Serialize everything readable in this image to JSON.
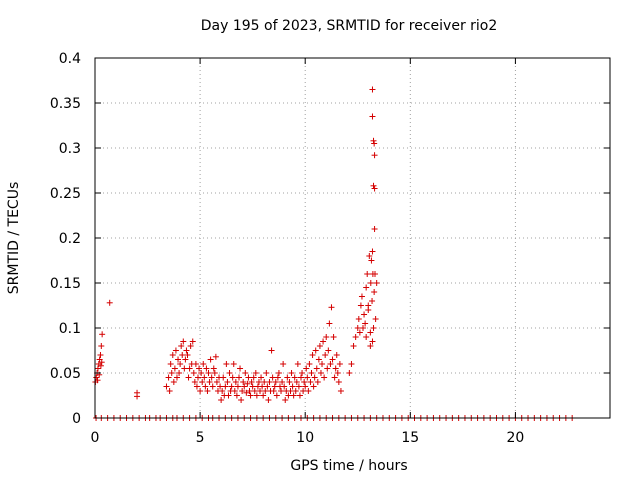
{
  "chart_data": {
    "type": "scatter",
    "title": "Day 195 of 2023, SRMTID for receiver rio2",
    "xlabel": "GPS time / hours",
    "ylabel": "SRMTID / TECUs",
    "xlim": [
      0,
      24.5
    ],
    "ylim": [
      0,
      0.4
    ],
    "grid": true,
    "marker": "+",
    "colors": {
      "series": "#d40000",
      "grid": "#a0a0a0",
      "axis": "#000000"
    },
    "x_ticks": [
      0,
      5,
      10,
      15,
      20
    ],
    "x_tick_labels": [
      "0",
      "5",
      "10",
      "15",
      "20"
    ],
    "y_ticks": [
      0,
      0.05,
      0.1,
      0.15,
      0.2,
      0.25,
      0.3,
      0.35,
      0.4
    ],
    "y_tick_labels": [
      "0",
      "0.05",
      "0.1",
      "0.15",
      "0.2",
      "0.25",
      "0.3",
      "0.35",
      "0.4"
    ],
    "series": [
      {
        "name": "SRMTID",
        "points": [
          [
            0.02,
            0.04
          ],
          [
            0.06,
            0.045
          ],
          [
            0.1,
            0.05
          ],
          [
            0.14,
            0.055
          ],
          [
            0.18,
            0.06
          ],
          [
            0.22,
            0.065
          ],
          [
            0.26,
            0.07
          ],
          [
            0.3,
            0.08
          ],
          [
            0.34,
            0.093
          ],
          [
            0.12,
            0.042
          ],
          [
            0.2,
            0.048
          ],
          [
            0.28,
            0.058
          ],
          [
            0.32,
            0.062
          ],
          [
            0.7,
            0.128
          ],
          [
            2.0,
            0.028
          ],
          [
            2.0,
            0.024
          ],
          [
            3.4,
            0.035
          ],
          [
            3.5,
            0.045
          ],
          [
            3.55,
            0.03
          ],
          [
            3.6,
            0.06
          ],
          [
            3.65,
            0.05
          ],
          [
            3.7,
            0.07
          ],
          [
            3.75,
            0.04
          ],
          [
            3.8,
            0.055
          ],
          [
            3.85,
            0.075
          ],
          [
            3.9,
            0.045
          ],
          [
            3.95,
            0.065
          ],
          [
            4.0,
            0.05
          ],
          [
            4.05,
            0.06
          ],
          [
            4.1,
            0.08
          ],
          [
            4.15,
            0.07
          ],
          [
            4.2,
            0.085
          ],
          [
            4.25,
            0.055
          ],
          [
            4.3,
            0.065
          ],
          [
            4.35,
            0.075
          ],
          [
            4.4,
            0.07
          ],
          [
            4.45,
            0.045
          ],
          [
            4.5,
            0.055
          ],
          [
            4.55,
            0.08
          ],
          [
            4.6,
            0.06
          ],
          [
            4.65,
            0.085
          ],
          [
            4.7,
            0.05
          ],
          [
            4.75,
            0.04
          ],
          [
            4.8,
            0.06
          ],
          [
            4.85,
            0.035
          ],
          [
            4.9,
            0.045
          ],
          [
            4.95,
            0.055
          ],
          [
            5.0,
            0.03
          ],
          [
            5.05,
            0.05
          ],
          [
            5.1,
            0.04
          ],
          [
            5.15,
            0.06
          ],
          [
            5.2,
            0.045
          ],
          [
            5.25,
            0.035
          ],
          [
            5.3,
            0.055
          ],
          [
            5.35,
            0.03
          ],
          [
            5.4,
            0.05
          ],
          [
            5.45,
            0.04
          ],
          [
            5.5,
            0.065
          ],
          [
            5.55,
            0.045
          ],
          [
            5.6,
            0.035
          ],
          [
            5.65,
            0.055
          ],
          [
            5.7,
            0.05
          ],
          [
            5.75,
            0.068
          ],
          [
            5.8,
            0.04
          ],
          [
            5.85,
            0.03
          ],
          [
            5.9,
            0.045
          ],
          [
            5.95,
            0.035
          ],
          [
            6.0,
            0.02
          ],
          [
            6.05,
            0.03
          ],
          [
            6.1,
            0.045
          ],
          [
            6.15,
            0.025
          ],
          [
            6.2,
            0.035
          ],
          [
            6.25,
            0.06
          ],
          [
            6.3,
            0.04
          ],
          [
            6.35,
            0.025
          ],
          [
            6.4,
            0.05
          ],
          [
            6.45,
            0.03
          ],
          [
            6.5,
            0.035
          ],
          [
            6.55,
            0.045
          ],
          [
            6.6,
            0.06
          ],
          [
            6.65,
            0.03
          ],
          [
            6.7,
            0.04
          ],
          [
            6.75,
            0.025
          ],
          [
            6.8,
            0.035
          ],
          [
            6.85,
            0.045
          ],
          [
            6.9,
            0.055
          ],
          [
            6.95,
            0.02
          ],
          [
            7.0,
            0.03
          ],
          [
            7.05,
            0.04
          ],
          [
            7.1,
            0.035
          ],
          [
            7.15,
            0.05
          ],
          [
            7.2,
            0.028
          ],
          [
            7.25,
            0.038
          ],
          [
            7.3,
            0.045
          ],
          [
            7.35,
            0.03
          ],
          [
            7.4,
            0.025
          ],
          [
            7.45,
            0.04
          ],
          [
            7.5,
            0.035
          ],
          [
            7.55,
            0.045
          ],
          [
            7.6,
            0.03
          ],
          [
            7.65,
            0.05
          ],
          [
            7.7,
            0.025
          ],
          [
            7.75,
            0.035
          ],
          [
            7.8,
            0.04
          ],
          [
            7.85,
            0.03
          ],
          [
            7.9,
            0.045
          ],
          [
            7.95,
            0.035
          ],
          [
            8.0,
            0.025
          ],
          [
            8.05,
            0.04
          ],
          [
            8.1,
            0.03
          ],
          [
            8.15,
            0.05
          ],
          [
            8.2,
            0.035
          ],
          [
            8.25,
            0.02
          ],
          [
            8.3,
            0.04
          ],
          [
            8.35,
            0.03
          ],
          [
            8.4,
            0.075
          ],
          [
            8.45,
            0.045
          ],
          [
            8.5,
            0.03
          ],
          [
            8.55,
            0.035
          ],
          [
            8.6,
            0.04
          ],
          [
            8.65,
            0.025
          ],
          [
            8.7,
            0.045
          ],
          [
            8.75,
            0.05
          ],
          [
            8.8,
            0.035
          ],
          [
            8.85,
            0.03
          ],
          [
            8.9,
            0.04
          ],
          [
            8.95,
            0.06
          ],
          [
            9.0,
            0.035
          ],
          [
            9.05,
            0.02
          ],
          [
            9.1,
            0.03
          ],
          [
            9.15,
            0.045
          ],
          [
            9.2,
            0.025
          ],
          [
            9.25,
            0.04
          ],
          [
            9.3,
            0.03
          ],
          [
            9.35,
            0.05
          ],
          [
            9.4,
            0.035
          ],
          [
            9.45,
            0.025
          ],
          [
            9.5,
            0.045
          ],
          [
            9.55,
            0.03
          ],
          [
            9.6,
            0.04
          ],
          [
            9.65,
            0.06
          ],
          [
            9.7,
            0.035
          ],
          [
            9.75,
            0.025
          ],
          [
            9.8,
            0.045
          ],
          [
            9.85,
            0.05
          ],
          [
            9.9,
            0.03
          ],
          [
            9.95,
            0.04
          ],
          [
            10.0,
            0.035
          ],
          [
            10.05,
            0.055
          ],
          [
            10.1,
            0.045
          ],
          [
            10.15,
            0.03
          ],
          [
            10.2,
            0.06
          ],
          [
            10.25,
            0.04
          ],
          [
            10.3,
            0.05
          ],
          [
            10.35,
            0.07
          ],
          [
            10.4,
            0.035
          ],
          [
            10.45,
            0.045
          ],
          [
            10.5,
            0.075
          ],
          [
            10.55,
            0.055
          ],
          [
            10.6,
            0.04
          ],
          [
            10.65,
            0.065
          ],
          [
            10.7,
            0.08
          ],
          [
            10.75,
            0.05
          ],
          [
            10.8,
            0.06
          ],
          [
            10.85,
            0.085
          ],
          [
            10.9,
            0.045
          ],
          [
            10.95,
            0.07
          ],
          [
            11.0,
            0.09
          ],
          [
            11.05,
            0.055
          ],
          [
            11.1,
            0.075
          ],
          [
            11.15,
            0.105
          ],
          [
            11.2,
            0.06
          ],
          [
            11.25,
            0.123
          ],
          [
            11.3,
            0.065
          ],
          [
            11.35,
            0.09
          ],
          [
            11.4,
            0.045
          ],
          [
            11.45,
            0.055
          ],
          [
            11.5,
            0.07
          ],
          [
            11.55,
            0.05
          ],
          [
            11.6,
            0.04
          ],
          [
            11.65,
            0.06
          ],
          [
            11.7,
            0.03
          ],
          [
            12.1,
            0.05
          ],
          [
            12.2,
            0.06
          ],
          [
            12.3,
            0.08
          ],
          [
            12.4,
            0.09
          ],
          [
            12.5,
            0.1
          ],
          [
            12.55,
            0.11
          ],
          [
            12.6,
            0.095
          ],
          [
            12.65,
            0.125
          ],
          [
            12.7,
            0.135
          ],
          [
            12.75,
            0.1
          ],
          [
            12.8,
            0.115
          ],
          [
            12.85,
            0.105
          ],
          [
            12.9,
            0.09
          ],
          [
            12.95,
            0.16
          ],
          [
            13.0,
            0.12
          ],
          [
            13.05,
            0.18
          ],
          [
            13.1,
            0.095
          ],
          [
            13.12,
            0.15
          ],
          [
            13.15,
            0.175
          ],
          [
            13.18,
            0.13
          ],
          [
            13.2,
            0.185
          ],
          [
            13.22,
            0.16
          ],
          [
            13.25,
            0.1
          ],
          [
            13.28,
            0.14
          ],
          [
            13.3,
            0.21
          ],
          [
            13.32,
            0.16
          ],
          [
            13.1,
            0.08
          ],
          [
            13.2,
            0.085
          ],
          [
            13.35,
            0.11
          ],
          [
            13.4,
            0.15
          ],
          [
            13.0,
            0.125
          ],
          [
            12.9,
            0.145
          ],
          [
            13.2,
            0.365
          ],
          [
            13.2,
            0.335
          ],
          [
            13.25,
            0.308
          ],
          [
            13.28,
            0.305
          ],
          [
            13.3,
            0.292
          ],
          [
            13.25,
            0.258
          ],
          [
            13.3,
            0.255
          ]
        ]
      }
    ],
    "zero_points_x": [
      0.05,
      0.3,
      0.6,
      0.9,
      1.2,
      1.5,
      1.8,
      2.1,
      2.4,
      2.6,
      2.9,
      3.1,
      3.4,
      3.7,
      3.9,
      4.2,
      4.5,
      4.8,
      5.1,
      5.4,
      5.6,
      5.9,
      6.2,
      6.5,
      6.8,
      7.1,
      7.4,
      7.7,
      8.0,
      8.3,
      8.6,
      8.9,
      9.2,
      9.5,
      9.8,
      10.1,
      10.4,
      10.7,
      11.0,
      11.3,
      11.6,
      11.9,
      12.2,
      12.5,
      12.8,
      13.1,
      13.4,
      13.7,
      14.0,
      14.3,
      14.6,
      14.9,
      15.2,
      15.5,
      15.8,
      16.1,
      16.4,
      16.7,
      17.0,
      17.3,
      17.6,
      17.9,
      18.2,
      18.5,
      18.8,
      19.1,
      19.4,
      19.7,
      20.0,
      20.3,
      20.6,
      20.9,
      21.2,
      21.5,
      21.8,
      22.1,
      22.4,
      22.7
    ]
  }
}
